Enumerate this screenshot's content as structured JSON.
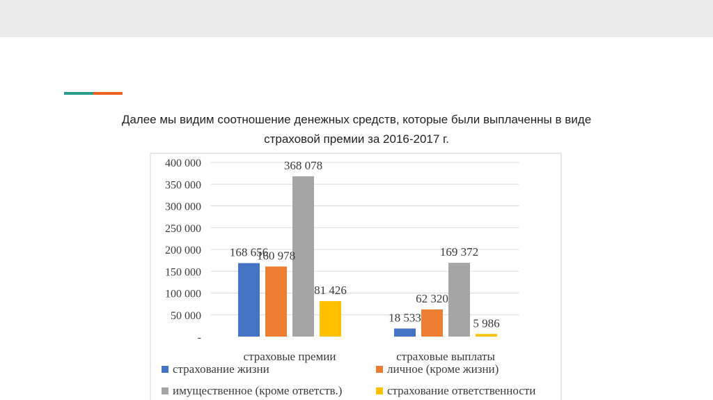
{
  "slide": {
    "caption_line1": "Далее мы видим соотношение денежных средств, которые были выплаченны в виде",
    "caption_line2": "страховой премии за 2016-2017 г.",
    "accent_colors": [
      "#2a9d8f",
      "#e8601c"
    ]
  },
  "chart_data": {
    "type": "bar",
    "categories": [
      "страховые премии",
      "страховые выплаты"
    ],
    "series": [
      {
        "name": "страхование жизни",
        "color": "#4472c4",
        "values": [
          168656,
          18533
        ],
        "labels": [
          "168 656",
          "18 533"
        ]
      },
      {
        "name": "личное (кроме жизни)",
        "color": "#ed7d31",
        "values": [
          160978,
          62320
        ],
        "labels": [
          "160 978",
          "62 320"
        ]
      },
      {
        "name": "имущественное (кроме ответств.)",
        "color": "#a5a5a5",
        "values": [
          368078,
          169372
        ],
        "labels": [
          "368 078",
          "169 372"
        ]
      },
      {
        "name": "страхование ответственности",
        "color": "#ffc000",
        "values": [
          81426,
          5986
        ],
        "labels": [
          "81 426",
          "5 986"
        ]
      }
    ],
    "yticks": [
      0,
      50000,
      100000,
      150000,
      200000,
      250000,
      300000,
      350000,
      400000
    ],
    "ytick_labels": [
      "-",
      "50 000",
      "100 000",
      "150 000",
      "200 000",
      "250 000",
      "300 000",
      "350 000",
      "400 000"
    ],
    "ylim": [
      0,
      400000
    ],
    "grid": true,
    "legend_position": "bottom"
  }
}
